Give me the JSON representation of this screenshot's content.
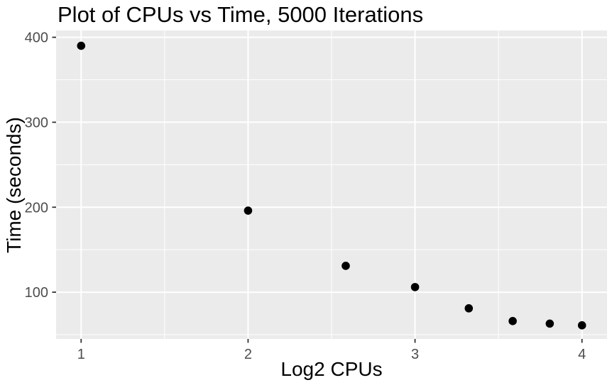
{
  "chart_data": {
    "type": "scatter",
    "title": "Plot of CPUs vs Time, 5000 Iterations",
    "xlabel": "Log2 CPUs",
    "ylabel": "Time (seconds)",
    "points": [
      {
        "x": 1.0,
        "y": 390
      },
      {
        "x": 2.0,
        "y": 196
      },
      {
        "x": 2.585,
        "y": 131
      },
      {
        "x": 3.0,
        "y": 106
      },
      {
        "x": 3.322,
        "y": 81
      },
      {
        "x": 3.585,
        "y": 66
      },
      {
        "x": 3.807,
        "y": 63
      },
      {
        "x": 4.0,
        "y": 61
      }
    ],
    "x_ticks": [
      "1",
      "2",
      "3",
      "4"
    ],
    "x_tick_values": [
      1,
      2,
      3,
      4
    ],
    "y_ticks": [
      "100",
      "200",
      "300",
      "400"
    ],
    "y_tick_values": [
      100,
      200,
      300,
      400
    ],
    "x_minor_ticks": [
      1.5,
      2.5,
      3.5
    ],
    "y_minor_ticks": [
      50,
      150,
      250,
      350
    ],
    "xlim": [
      0.85,
      4.15
    ],
    "ylim": [
      45,
      408
    ],
    "grid": "major-and-minor-on",
    "legend_position": "none",
    "style": {
      "plot_bg": "#FFFFFF",
      "panel_bg": "#EBEBEB",
      "grid_color": "#FFFFFF",
      "point_color": "#000000",
      "axis_text_color": "#4D4D4D",
      "tick_mark_color": "#333333",
      "title_color": "#000000"
    }
  }
}
